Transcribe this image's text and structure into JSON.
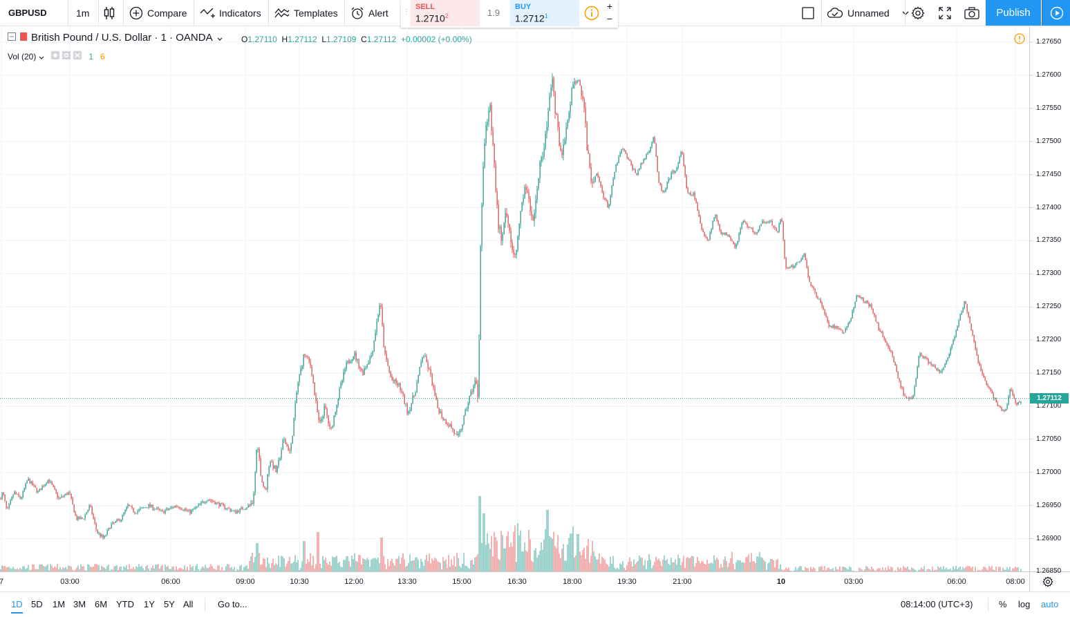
{
  "toolbar": {
    "symbol": "GBPUSD",
    "interval": "1m",
    "compare": "Compare",
    "indicators": "Indicators",
    "templates": "Templates",
    "alert": "Alert",
    "layout_name": "Unnamed",
    "publish": "Publish"
  },
  "trade_panel": {
    "sell_label": "SELL",
    "sell_price": "1.2710",
    "sell_sup": "2",
    "spread": "1.9",
    "buy_label": "BUY",
    "buy_price": "1.2712",
    "buy_sup": "1",
    "plus": "+",
    "minus": "−"
  },
  "legend": {
    "title": "British Pound / U.S. Dollar · 1 · OANDA",
    "o_label": "O",
    "o": "1.27110",
    "h_label": "H",
    "h": "1.27112",
    "l_label": "L",
    "l": "1.27109",
    "c_label": "C",
    "c": "1.27112",
    "change": "+0.00002 (+0.00%)",
    "vol_label": "Vol (20)",
    "vol_v1": "1",
    "vol_v2": "6"
  },
  "colors": {
    "up": "#26a69a",
    "down": "#ef5350",
    "accent": "#2196f3",
    "warning": "#ff9800"
  },
  "last_price_label": "1.27112",
  "bottom": {
    "ranges": [
      "1D",
      "5D",
      "1M",
      "3M",
      "6M",
      "YTD",
      "1Y",
      "5Y",
      "All"
    ],
    "active_range": "1D",
    "goto": "Go to...",
    "clock": "08:14:00 (UTC+3)",
    "pct": "%",
    "log": "log",
    "auto": "auto"
  },
  "chart_data": {
    "type": "candlestick",
    "y_ticks": [
      "1.27650",
      "1.27600",
      "1.27550",
      "1.27500",
      "1.27450",
      "1.27400",
      "1.27350",
      "1.27300",
      "1.27250",
      "1.27200",
      "1.27150",
      "1.27100",
      "1.27050",
      "1.27000",
      "1.26950",
      "1.26900",
      "1.26850"
    ],
    "x_ticks": [
      "7",
      "03:00",
      "06:00",
      "09:00",
      "10:30",
      "12:00",
      "13:30",
      "15:00",
      "16:30",
      "18:00",
      "19:30",
      "21:00",
      "10",
      "03:00",
      "06:00",
      "08:00"
    ],
    "ylim": [
      1.2685,
      1.2767
    ],
    "last_price": 1.27112,
    "close_path": [
      [
        0,
        1.2696
      ],
      [
        4,
        1.2697
      ],
      [
        10,
        1.2694
      ],
      [
        20,
        1.2697
      ],
      [
        30,
        1.2696
      ],
      [
        40,
        1.2699
      ],
      [
        55,
        1.2697
      ],
      [
        70,
        1.2699
      ],
      [
        85,
        1.2696
      ],
      [
        100,
        1.2697
      ],
      [
        110,
        1.2693
      ],
      [
        120,
        1.2693
      ],
      [
        130,
        1.2695
      ],
      [
        140,
        1.2691
      ],
      [
        150,
        1.269
      ],
      [
        160,
        1.2692
      ],
      [
        175,
        1.2693
      ],
      [
        185,
        1.2695
      ],
      [
        195,
        1.2694
      ],
      [
        215,
        1.2695
      ],
      [
        235,
        1.2694
      ],
      [
        255,
        1.2695
      ],
      [
        275,
        1.2694
      ],
      [
        300,
        1.2696
      ],
      [
        320,
        1.2695
      ],
      [
        340,
        1.2694
      ],
      [
        360,
        1.2695
      ],
      [
        366,
        1.2695
      ],
      [
        372,
        1.2705
      ],
      [
        378,
        1.2699
      ],
      [
        384,
        1.2697
      ],
      [
        390,
        1.2702
      ],
      [
        400,
        1.27
      ],
      [
        410,
        1.2705
      ],
      [
        420,
        1.2703
      ],
      [
        430,
        1.2713
      ],
      [
        440,
        1.2718
      ],
      [
        450,
        1.2716
      ],
      [
        456,
        1.2711
      ],
      [
        462,
        1.2707
      ],
      [
        470,
        1.271
      ],
      [
        478,
        1.2706
      ],
      [
        488,
        1.2711
      ],
      [
        500,
        1.2716
      ],
      [
        512,
        1.2718
      ],
      [
        524,
        1.2715
      ],
      [
        538,
        1.2718
      ],
      [
        550,
        1.2726
      ],
      [
        556,
        1.2718
      ],
      [
        566,
        1.2714
      ],
      [
        578,
        1.2713
      ],
      [
        590,
        1.2709
      ],
      [
        600,
        1.2712
      ],
      [
        612,
        1.2718
      ],
      [
        622,
        1.2715
      ],
      [
        632,
        1.271
      ],
      [
        642,
        1.2708
      ],
      [
        652,
        1.2707
      ],
      [
        662,
        1.2705
      ],
      [
        668,
        1.2707
      ],
      [
        678,
        1.2711
      ],
      [
        688,
        1.2714
      ],
      [
        692,
        1.2711
      ],
      [
        694,
        1.273
      ],
      [
        698,
        1.2745
      ],
      [
        702,
        1.2751
      ],
      [
        708,
        1.2756
      ],
      [
        714,
        1.2748
      ],
      [
        720,
        1.2738
      ],
      [
        726,
        1.2735
      ],
      [
        732,
        1.2739
      ],
      [
        740,
        1.2735
      ],
      [
        746,
        1.2732
      ],
      [
        752,
        1.2738
      ],
      [
        760,
        1.2744
      ],
      [
        766,
        1.274
      ],
      [
        772,
        1.2738
      ],
      [
        780,
        1.2746
      ],
      [
        790,
        1.2751
      ],
      [
        798,
        1.276
      ],
      [
        804,
        1.2754
      ],
      [
        812,
        1.2748
      ],
      [
        820,
        1.2752
      ],
      [
        828,
        1.2758
      ],
      [
        836,
        1.276
      ],
      [
        844,
        1.2756
      ],
      [
        850,
        1.2748
      ],
      [
        856,
        1.2744
      ],
      [
        864,
        1.2745
      ],
      [
        872,
        1.2742
      ],
      [
        880,
        1.274
      ],
      [
        890,
        1.2746
      ],
      [
        900,
        1.2749
      ],
      [
        910,
        1.2747
      ],
      [
        920,
        1.2745
      ],
      [
        930,
        1.2747
      ],
      [
        940,
        1.2749
      ],
      [
        946,
        1.2751
      ],
      [
        952,
        1.2744
      ],
      [
        960,
        1.2742
      ],
      [
        970,
        1.2745
      ],
      [
        980,
        1.2746
      ],
      [
        986,
        1.2749
      ],
      [
        994,
        1.2742
      ],
      [
        1004,
        1.2742
      ],
      [
        1014,
        1.2737
      ],
      [
        1024,
        1.2735
      ],
      [
        1034,
        1.2739
      ],
      [
        1044,
        1.2736
      ],
      [
        1054,
        1.2736
      ],
      [
        1064,
        1.2734
      ],
      [
        1074,
        1.2738
      ],
      [
        1084,
        1.2737
      ],
      [
        1094,
        1.2736
      ],
      [
        1104,
        1.2738
      ],
      [
        1114,
        1.2738
      ],
      [
        1124,
        1.2736
      ],
      [
        1130,
        1.2739
      ],
      [
        1136,
        1.2731
      ],
      [
        1146,
        1.2731
      ],
      [
        1156,
        1.2732
      ],
      [
        1164,
        1.2733
      ],
      [
        1170,
        1.2729
      ],
      [
        1180,
        1.2727
      ],
      [
        1190,
        1.2725
      ],
      [
        1200,
        1.2722
      ],
      [
        1210,
        1.2722
      ],
      [
        1220,
        1.2721
      ],
      [
        1230,
        1.2723
      ],
      [
        1240,
        1.2727
      ],
      [
        1250,
        1.2726
      ],
      [
        1260,
        1.2725
      ],
      [
        1270,
        1.2722
      ],
      [
        1280,
        1.272
      ],
      [
        1290,
        1.2718
      ],
      [
        1300,
        1.2714
      ],
      [
        1310,
        1.2711
      ],
      [
        1320,
        1.2711
      ],
      [
        1330,
        1.2718
      ],
      [
        1340,
        1.2717
      ],
      [
        1350,
        1.2716
      ],
      [
        1360,
        1.2715
      ],
      [
        1370,
        1.2717
      ],
      [
        1380,
        1.272
      ],
      [
        1390,
        1.2724
      ],
      [
        1396,
        1.2726
      ],
      [
        1404,
        1.2722
      ],
      [
        1414,
        1.2717
      ],
      [
        1424,
        1.2714
      ],
      [
        1434,
        1.2712
      ],
      [
        1444,
        1.271
      ],
      [
        1454,
        1.2709
      ],
      [
        1462,
        1.2713
      ],
      [
        1470,
        1.271
      ],
      [
        1478,
        1.2711
      ]
    ],
    "volume_spikes": [
      [
        460,
        58
      ],
      [
        694,
        110
      ],
      [
        700,
        85
      ],
      [
        792,
        90
      ],
      [
        836,
        55
      ],
      [
        552,
        50
      ],
      [
        440,
        45
      ],
      [
        372,
        42
      ]
    ]
  }
}
